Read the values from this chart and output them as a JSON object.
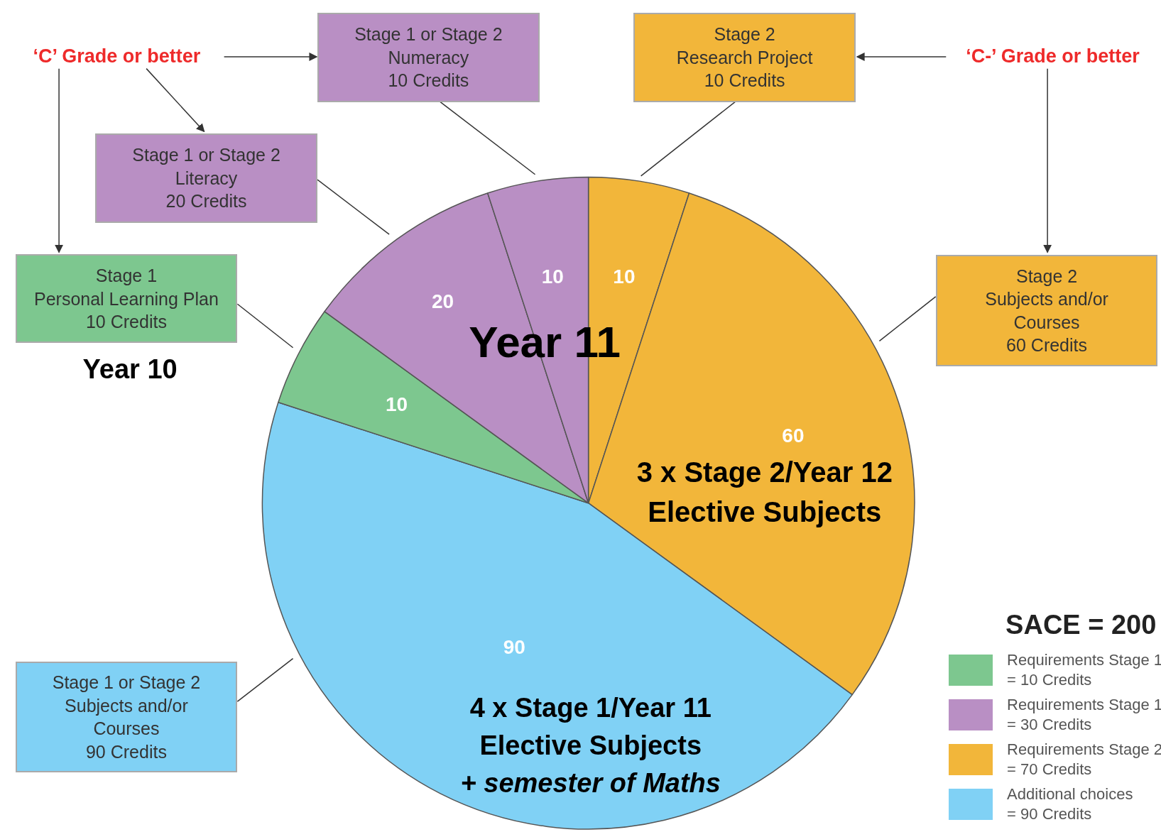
{
  "chart_data": {
    "type": "pie",
    "categories": [
      null,
      null,
      null,
      null,
      null,
      null
    ],
    "values": [
      10,
      60,
      90,
      10,
      20,
      10
    ],
    "colors": [
      "#f2b63a",
      "#f2b63a",
      "#80d1f5",
      "#7dc78f",
      "#b98fc4",
      "#b98fc4"
    ],
    "data_labels": true,
    "legend_title": "SACE = 200",
    "annotations": [
      "Stage 2\nResearch Project\n10 Credits",
      "Stage 2\nSubjects and/or\nCourses\n60 Credits",
      "Stage 1 or Stage 2\nSubjects and/or\nCourses\n90 Credits",
      "Stage 1\nPersonal Learning Plan\n10 Credits",
      "Stage 1 or Stage 2\nLiteracy\n20 Credits",
      "Stage 1 or Stage 2\nNumeracy\n10 Credits",
      "‘C’ Grade or better",
      "‘C-’ Grade or better",
      "Year 10",
      "Year 11",
      "3 x Stage 2/Year 12\nElective Subjects",
      "4 x Stage 1/Year 11\nElective Subjects\n+ semester of Maths",
      "Requirements Stage 1\n= 10 Credits",
      "Requirements Stage 1\n= 30 Credits",
      "Requirements Stage 2\n= 70 Credits",
      "Additional choices\n= 90 Credits"
    ]
  }
}
